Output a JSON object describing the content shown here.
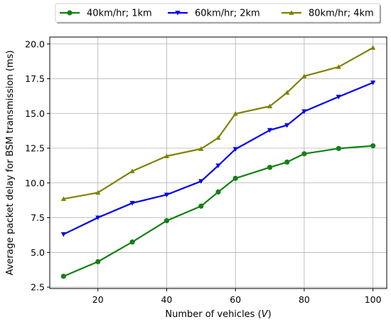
{
  "chart_data": {
    "type": "line",
    "xlabel": "Number of vehicles (V)",
    "xlabel_parts": [
      "Number of vehicles (",
      "V",
      ")"
    ],
    "ylabel": "Average packet delay for BSM transmission (ms)",
    "xlim": [
      6,
      104
    ],
    "ylim": [
      2.4,
      20.5
    ],
    "xticks": [
      20,
      40,
      60,
      80,
      100
    ],
    "xtick_labels": [
      "20",
      "40",
      "60",
      "80",
      "100"
    ],
    "yticks": [
      2.5,
      5.0,
      7.5,
      10.0,
      12.5,
      15.0,
      17.5,
      20.0
    ],
    "ytick_labels": [
      "2.5",
      "5.0",
      "7.5",
      "10.0",
      "12.5",
      "15.0",
      "17.5",
      "20.0"
    ],
    "grid": true,
    "legend_position": "top-center-outside",
    "x": [
      10,
      20,
      30,
      40,
      50,
      55,
      60,
      70,
      75,
      80,
      90,
      100
    ],
    "series": [
      {
        "name": "40km/hr; 1km",
        "color": "#138013",
        "marker": "circle",
        "values": [
          3.28,
          4.33,
          5.75,
          7.28,
          8.33,
          9.35,
          10.33,
          11.12,
          11.5,
          12.1,
          12.48,
          12.67
        ]
      },
      {
        "name": "60km/hr; 2km",
        "color": "#0000ee",
        "marker": "triangle-down",
        "values": [
          6.3,
          7.5,
          8.55,
          9.15,
          10.12,
          11.25,
          12.43,
          13.8,
          14.15,
          15.15,
          16.2,
          17.22
        ]
      },
      {
        "name": "80km/hr; 4km",
        "color": "#808000",
        "marker": "triangle-up",
        "values": [
          8.85,
          9.3,
          10.85,
          11.93,
          12.45,
          13.25,
          14.98,
          15.52,
          16.5,
          17.68,
          18.35,
          19.73
        ]
      }
    ]
  }
}
